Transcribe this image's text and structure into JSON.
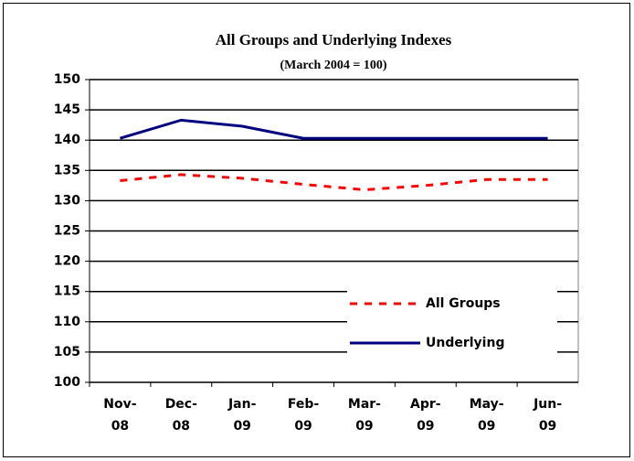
{
  "chart_data": {
    "type": "line",
    "title": "All Groups and Underlying Indexes",
    "subtitle": "(March 2004 = 100)",
    "categories": [
      [
        "Nov-",
        "08"
      ],
      [
        "Dec-",
        "08"
      ],
      [
        "Jan-",
        "09"
      ],
      [
        "Feb-",
        "09"
      ],
      [
        "Mar-",
        "09"
      ],
      [
        "Apr-",
        "09"
      ],
      [
        "May-",
        "09"
      ],
      [
        "Jun-",
        "09"
      ]
    ],
    "series": [
      {
        "name": "All Groups",
        "color": "#ff0000",
        "dash": true,
        "values": [
          133.3,
          134.3,
          133.7,
          132.7,
          131.8,
          132.5,
          133.5,
          133.5
        ]
      },
      {
        "name": "Underlying",
        "color": "#000080",
        "dash": false,
        "values": [
          140.3,
          143.3,
          142.3,
          140.3,
          140.3,
          140.3,
          140.3,
          140.3
        ]
      }
    ],
    "ylim": [
      100,
      150
    ],
    "yticks": [
      100,
      105,
      110,
      115,
      120,
      125,
      130,
      135,
      140,
      145,
      150
    ],
    "grid": true,
    "legend": "lower right"
  }
}
